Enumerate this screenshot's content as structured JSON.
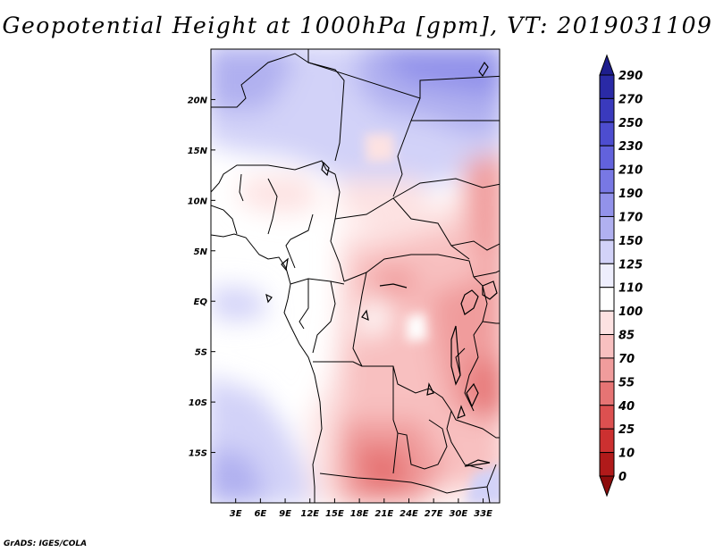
{
  "title": "Geopotential Height at 1000hPa [gpm], VT: 2019031109",
  "footer": "GrADS: IGES/COLA",
  "map": {
    "lon_range": [
      0,
      35
    ],
    "lat_range": [
      -20,
      25
    ],
    "lat_ticks": [
      {
        "value": 20,
        "label": "20N"
      },
      {
        "value": 15,
        "label": "15N"
      },
      {
        "value": 10,
        "label": "10N"
      },
      {
        "value": 5,
        "label": "5N"
      },
      {
        "value": 0,
        "label": "EQ"
      },
      {
        "value": -5,
        "label": "5S"
      },
      {
        "value": -10,
        "label": "10S"
      },
      {
        "value": -15,
        "label": "15S"
      }
    ],
    "lon_ticks": [
      {
        "value": 3,
        "label": "3E"
      },
      {
        "value": 6,
        "label": "6E"
      },
      {
        "value": 9,
        "label": "9E"
      },
      {
        "value": 12,
        "label": "12E"
      },
      {
        "value": 15,
        "label": "15E"
      },
      {
        "value": 18,
        "label": "18E"
      },
      {
        "value": 21,
        "label": "21E"
      },
      {
        "value": 24,
        "label": "24E"
      },
      {
        "value": 27,
        "label": "27E"
      },
      {
        "value": 30,
        "label": "30E"
      },
      {
        "value": 33,
        "label": "33E"
      }
    ]
  },
  "colorbar": {
    "levels": [
      "290",
      "270",
      "250",
      "230",
      "210",
      "190",
      "170",
      "150",
      "125",
      "110",
      "100",
      "85",
      "70",
      "55",
      "40",
      "25",
      "10",
      "0"
    ],
    "colors": [
      "#1e1e8e",
      "#2a2aa6",
      "#3a3abd",
      "#4d4dd0",
      "#6262dc",
      "#7878e4",
      "#9292ea",
      "#b0b0f0",
      "#d2d2f8",
      "#eeeefd",
      "#ffffff",
      "#fde2e2",
      "#f8c0c0",
      "#f09c9c",
      "#e67474",
      "#dc5050",
      "#cc3030",
      "#b01a1a",
      "#8c0c0c"
    ]
  }
}
